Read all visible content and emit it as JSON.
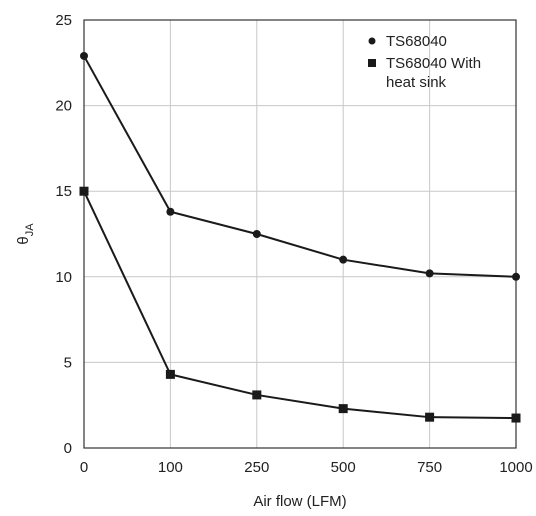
{
  "chart_data": {
    "type": "line",
    "categories": [
      "0",
      "100",
      "250",
      "500",
      "750",
      "1000"
    ],
    "series": [
      {
        "name": "TS68040",
        "marker": "circle",
        "values": [
          22.9,
          13.8,
          12.5,
          11.0,
          10.2,
          10.0
        ]
      },
      {
        "name": "TS68040 With heat sink",
        "marker": "square",
        "values": [
          15.0,
          4.3,
          3.1,
          2.3,
          1.8,
          1.75
        ]
      }
    ],
    "legend_lines": [
      [
        "TS68040"
      ],
      [
        "TS68040 With",
        "heat sink"
      ]
    ],
    "title": "",
    "xlabel": "Air flow (LFM)",
    "ylabel_main": "θ",
    "ylabel_sub": "JA",
    "ylim": [
      0,
      25
    ],
    "yticks": [
      "0",
      "5",
      "10",
      "15",
      "20",
      "25"
    ],
    "grid": true,
    "legend_position": "top-right",
    "line_color": "#1a1a1a"
  }
}
